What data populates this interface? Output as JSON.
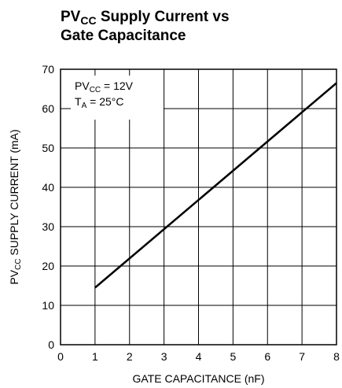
{
  "chart_data": {
    "type": "line",
    "title": [
      [
        "PV",
        "CC",
        " Supply Current vs"
      ],
      [
        "Gate Capacitance"
      ]
    ],
    "x_label": "GATE CAPACITANCE (nF)",
    "y_label": [
      "PV",
      "CC",
      " SUPPLY CURRENT (mA)"
    ],
    "annotations": [
      [
        "PV",
        "CC",
        " = 12V"
      ],
      [
        "T",
        "A",
        " = 25°C"
      ]
    ],
    "x": [
      1,
      8
    ],
    "series": [
      {
        "color": "#000000",
        "values": [
          14.5,
          66.5
        ]
      }
    ],
    "xlim": [
      0,
      8
    ],
    "xticks": [
      0,
      1,
      2,
      3,
      4,
      5,
      6,
      7,
      8
    ],
    "ylim": [
      0,
      70
    ],
    "yticks": [
      0,
      10,
      20,
      30,
      40,
      50,
      60,
      70
    ],
    "grid": true
  }
}
